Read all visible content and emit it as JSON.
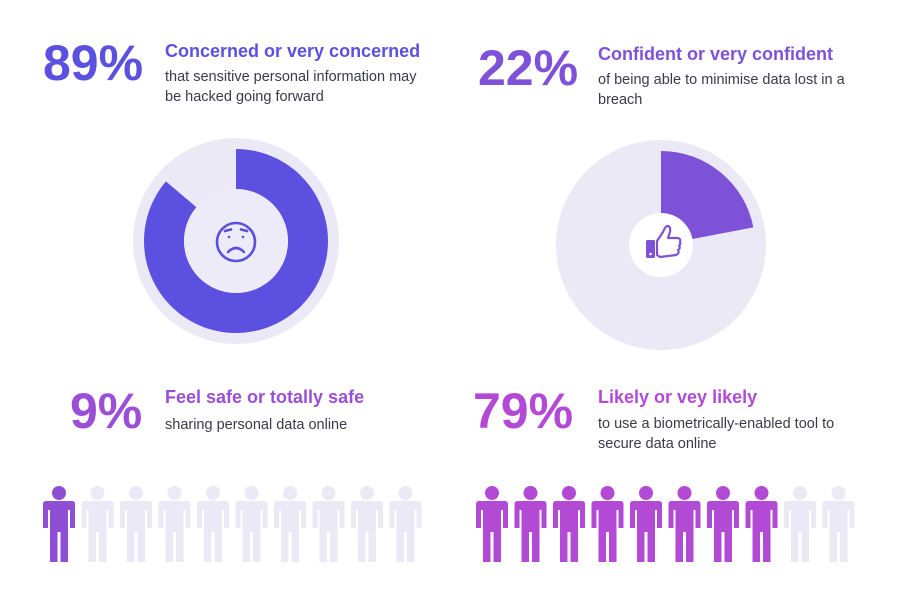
{
  "colors": {
    "blue": "#5b50e0",
    "violet": "#7e52d8",
    "purple": "#9b4fd6",
    "magenta": "#b24ad6",
    "light": "#ebe9f6",
    "icon_bg": "#ecebf7",
    "text": "#3a3a4a"
  },
  "stats": [
    {
      "percent": "89%",
      "headline": "Concerned or very concerned",
      "description": "that sensitive personal information may be hacked going forward"
    },
    {
      "percent": "22%",
      "headline": "Confident or very confident",
      "description": "of being able to minimise data lost in a breach"
    },
    {
      "percent": "9%",
      "headline": "Feel safe or totally safe",
      "description": "sharing personal data online"
    },
    {
      "percent": "79%",
      "headline": "Likely or vey likely",
      "description": "to use a biometrically-enabled tool to secure data online"
    }
  ],
  "icons": {
    "donut_center": "sad-face-icon",
    "pie_center": "thumbs-up-icon",
    "people": "person-icon"
  },
  "chart_data": [
    {
      "type": "pie",
      "variant": "donut",
      "values": [
        89,
        11
      ],
      "highlight_color": "#5b50e0"
    },
    {
      "type": "pie",
      "values": [
        22,
        78
      ],
      "highlight_color": "#7e52d8"
    },
    {
      "type": "pictogram",
      "total": 10,
      "highlighted": 1,
      "highlight_color": "#8e4fd4"
    },
    {
      "type": "pictogram",
      "total": 10,
      "highlighted": 8,
      "highlight_color": "#b24ad6"
    }
  ]
}
